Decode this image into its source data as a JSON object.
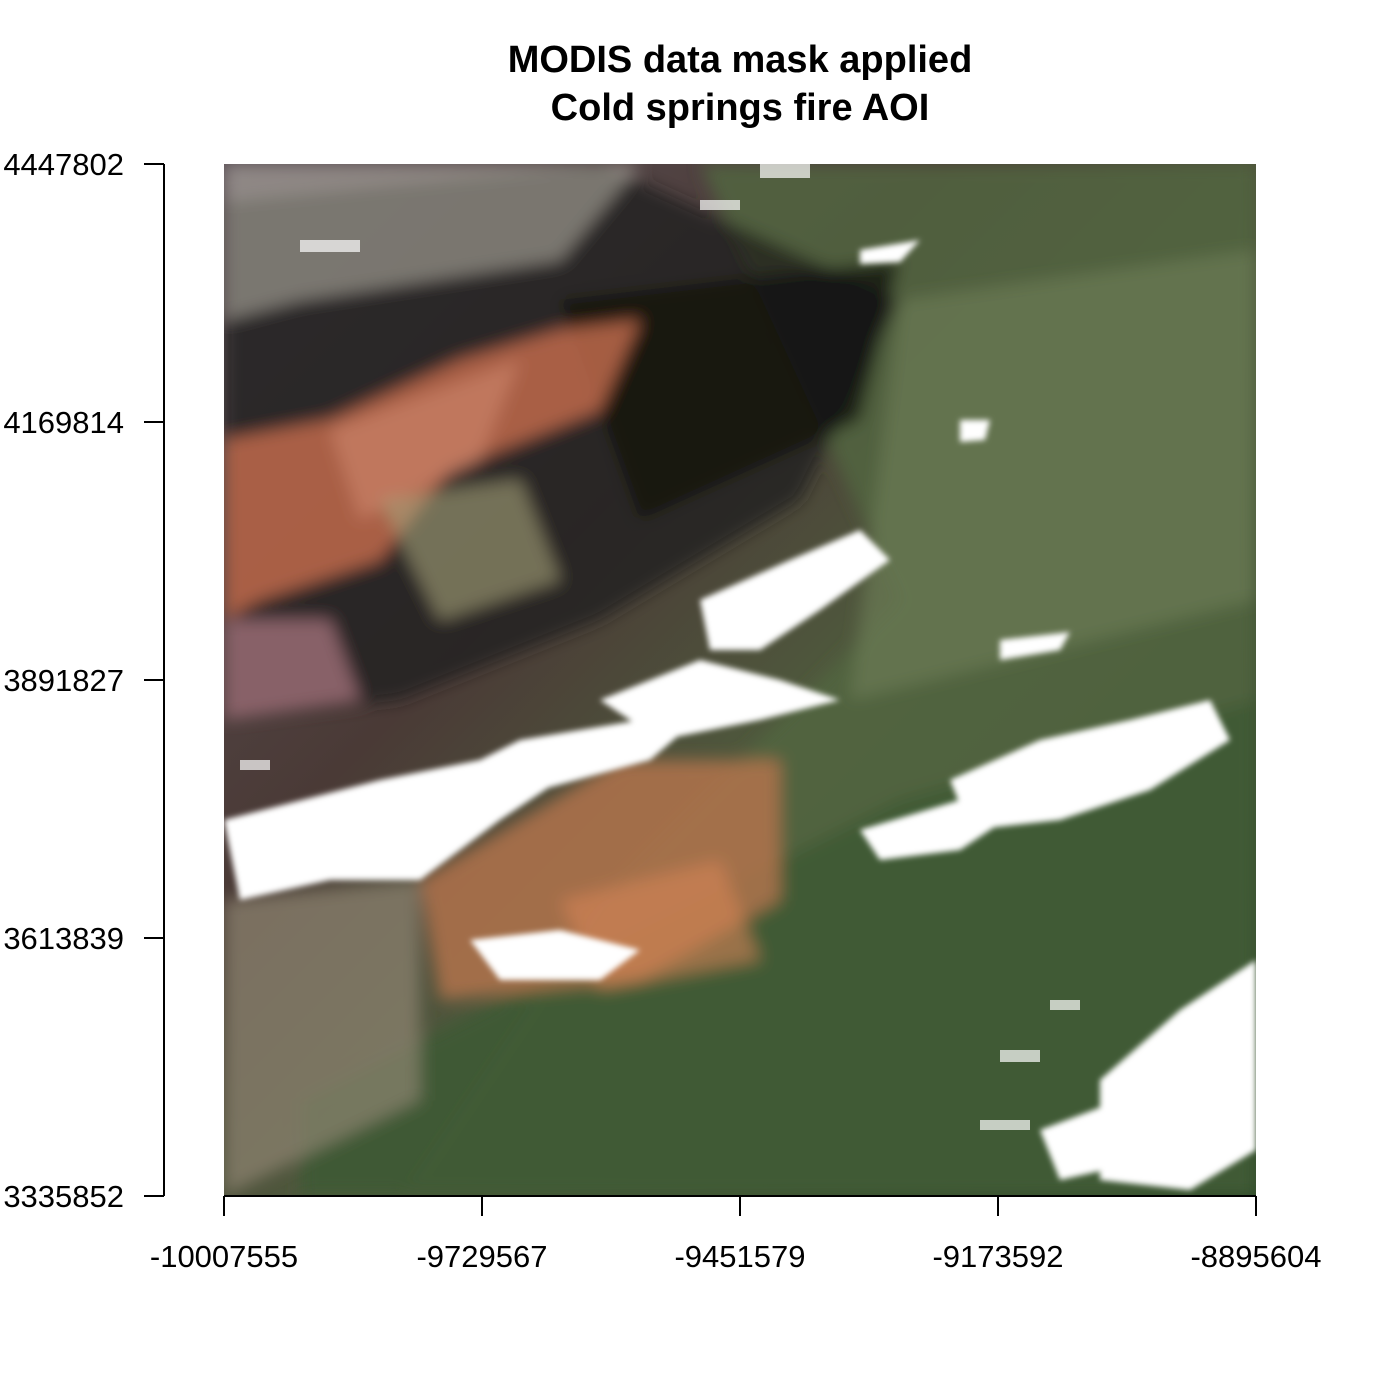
{
  "title": {
    "line1": "MODIS data mask applied",
    "line2": "Cold springs fire AOI"
  },
  "map": {
    "x_axis": {
      "range": [
        -10007555,
        -8895604
      ],
      "ticks": [
        "-10007555",
        "-9729567",
        "-9451579",
        "-9173592",
        "-8895604"
      ]
    },
    "y_axis": {
      "range": [
        3335852,
        4447802
      ],
      "ticks": [
        "4447802",
        "4169814",
        "3891827",
        "3613839",
        "3335852"
      ]
    },
    "image": {
      "description_free": true,
      "colors": {
        "vegetation": "#3f5a32",
        "burn_scar": "#c0674a",
        "shadow": "#1c1e18",
        "cloud": "#ffffff",
        "bare": "#9a9a80"
      }
    }
  }
}
